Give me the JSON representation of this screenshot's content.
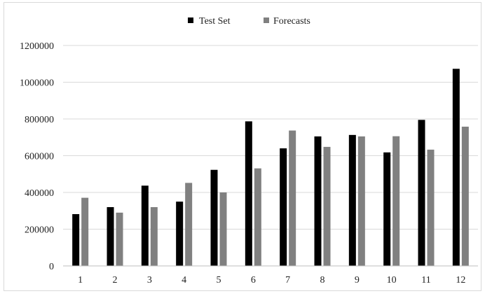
{
  "chart_data": {
    "type": "bar",
    "categories": [
      "1",
      "2",
      "3",
      "4",
      "5",
      "6",
      "7",
      "8",
      "9",
      "10",
      "11",
      "12"
    ],
    "series": [
      {
        "name": "Test Set",
        "color": "#000000",
        "values": [
          282000,
          320000,
          437000,
          350000,
          523000,
          787000,
          640000,
          705000,
          713000,
          618000,
          795000,
          1073000
        ]
      },
      {
        "name": "Forecasts",
        "color": "#808080",
        "values": [
          371000,
          290000,
          320000,
          452000,
          400000,
          531000,
          737000,
          648000,
          705000,
          706000,
          633000,
          758000
        ]
      }
    ],
    "ylim": [
      0,
      1200000
    ],
    "yticks": [
      "0",
      "200000",
      "400000",
      "600000",
      "800000",
      "1000000",
      "1200000"
    ],
    "grid": true,
    "legend": "top-center"
  }
}
